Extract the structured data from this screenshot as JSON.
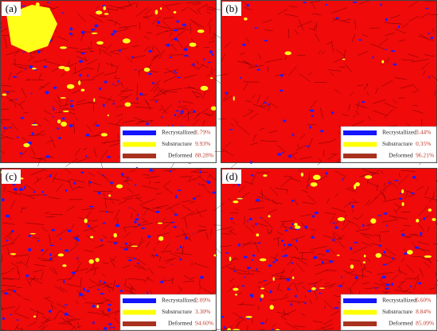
{
  "panels": [
    {
      "label": "(a)",
      "legend": [
        {
          "name": "Recrystallized",
          "value": "1.79%"
        },
        {
          "name": "Substructure",
          "value": "9.93%"
        },
        {
          "name": "Deformed",
          "value": "88.28%"
        }
      ]
    },
    {
      "label": "(b)",
      "legend": [
        {
          "name": "Recrystallized",
          "value": "3.44%"
        },
        {
          "name": "Substructure",
          "value": "0.35%"
        },
        {
          "name": "Deformed",
          "value": "96.21%"
        }
      ]
    },
    {
      "label": "(c)",
      "legend": [
        {
          "name": "Recrystallized",
          "value": "2.09%"
        },
        {
          "name": "Substructure",
          "value": "3.30%"
        },
        {
          "name": "Deformed",
          "value": "94.60%"
        }
      ]
    },
    {
      "label": "(d)",
      "legend": [
        {
          "name": "Recrystallized",
          "value": "6.60%"
        },
        {
          "name": "Substructure",
          "value": "8.84%"
        },
        {
          "name": "Deformed",
          "value": "85.09%"
        }
      ]
    }
  ]
}
